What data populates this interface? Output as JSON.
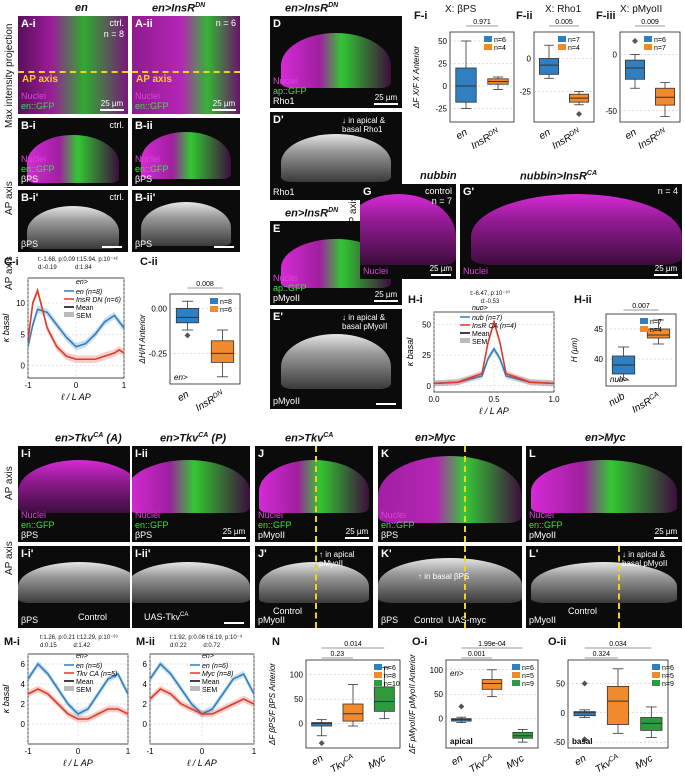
{
  "panels": {
    "A_i": {
      "label": "A-i",
      "title": "en",
      "ctrl": "ctrl.",
      "n": "n = 8",
      "ap": "AP axis",
      "scale": "25 µm",
      "ch1": "Nuclei",
      "ch2": "en::GFP"
    },
    "A_ii": {
      "label": "A-ii",
      "title": "en>InsR",
      "sup": "DN",
      "n": "n = 6",
      "ap": "AP axis",
      "scale": "25 µm",
      "ch1": "Nuclei",
      "ch2": "en::GFP"
    },
    "side_A": "Max intensity projection",
    "B_i": {
      "label": "B-i",
      "ctrl": "ctrl.",
      "ch1": "Nuclei",
      "ch2": "en::GFP",
      "ch3": "βPS"
    },
    "B_ii": {
      "label": "B-ii",
      "ch1": "Nuclei",
      "ch2": "en::GFP",
      "ch3": "βPS"
    },
    "B_i2": {
      "label": "B-i'",
      "ctrl": "ctrl.",
      "ch": "βPS"
    },
    "B_ii2": {
      "label": "B-ii'",
      "ch": "βPS"
    },
    "side_B": "AP axis",
    "side_B2": "AP axis",
    "C_i": {
      "label": "C-i",
      "stats1": "t:-1.68, p:0.09",
      "stats2": "t:15.94, p:10⁻⁴²",
      "stats3": "d:-0.19",
      "stats4": "d:1.84"
    },
    "C_ii": {
      "label": "C-ii",
      "pval": "0.008"
    },
    "D": {
      "label": "D",
      "title": "en>InsR",
      "sup": "DN",
      "ch1": "Nuclei",
      "ch2": "ap::GFP",
      "ch3": "Rho1",
      "scale": "25 µm"
    },
    "D2": {
      "label": "D'",
      "note": "↓ in apical & basal Rho1",
      "ch": "Rho1"
    },
    "E": {
      "label": "E",
      "title": "en>InsR",
      "sup": "DN",
      "ch1": "Nuclei",
      "ch2": "ap::GFP",
      "ch3": "pMyoII",
      "scale": "25 µm"
    },
    "E2": {
      "label": "E'",
      "note": "↓ in apical & basal pMyoII",
      "ch": "pMyoII"
    },
    "F_i": {
      "label": "F-i",
      "title": "X: βPS",
      "pval": "0.971"
    },
    "F_ii": {
      "label": "F-ii",
      "title": "X: Rho1",
      "pval": "0.005"
    },
    "F_iii": {
      "label": "F-iii",
      "title": "X: pMyoII",
      "pval": "0.009"
    },
    "G": {
      "label": "G",
      "title": "nubbin",
      "ctrl": "control",
      "n": "n = 7",
      "ch": "Nuclei",
      "scale": "25 µm"
    },
    "G2": {
      "label": "G'",
      "title": "nubbin>InsR",
      "sup": "CA",
      "n": "n = 4",
      "ch": "Nuclei",
      "scale": "25 µm"
    },
    "side_G": "AP axis",
    "H_i": {
      "label": "H-i",
      "stats1": "t:-6.47, p:10⁻¹⁰",
      "stats2": "d:-0.53"
    },
    "H_ii": {
      "label": "H-ii",
      "pval": "0.007"
    },
    "I_i": {
      "label": "I-i",
      "title": "en>Tkv",
      "sup": "CA",
      "suffix": " (A)",
      "ch1": "Nuclei",
      "ch2": "en::GFP",
      "ch3": "βPS"
    },
    "I_ii": {
      "label": "I-ii",
      "title": "en>Tkv",
      "sup": "CA",
      "suffix": " (P)",
      "ch1": "Nuclei",
      "ch2": "en::GFP",
      "ch3": "βPS",
      "scale": "25 µm"
    },
    "I_i2": {
      "label": "I-i'",
      "ch": "βPS",
      "ctrl": "Control"
    },
    "I_ii2": {
      "label": "I-ii'",
      "ctrl": "UAS-Tkv",
      "sup": "CA"
    },
    "side_I": "AP axis",
    "side_I2": "AP axis",
    "J": {
      "label": "J",
      "title": "en>Tkv",
      "sup": "CA",
      "ch1": "Nuclei",
      "ch2": "en::GFP",
      "ch3": "pMyoII",
      "scale": "25 µm"
    },
    "J2": {
      "label": "J'",
      "note": "↑ in apical pMyoII",
      "ctrl": "Control",
      "ch": "pMyoII"
    },
    "K": {
      "label": "K",
      "title": "en>Myc",
      "ch1": "Nuclei",
      "ch2": "en::GFP",
      "ch3": "βPS"
    },
    "K2": {
      "label": "K'",
      "note": "↑ in basal βPS",
      "ctrl": "Control",
      "ctrl2": "UAS-myc",
      "ch": "βPS"
    },
    "L": {
      "label": "L",
      "title": "en>Myc",
      "ch1": "Nuclei",
      "ch2": "en::GFP",
      "ch3": "pMyoII",
      "scale": "25 µm"
    },
    "L2": {
      "label": "L'",
      "note": "↓ in apical & basal pMyoII",
      "ctrl": "Control",
      "ch": "pMyoII"
    },
    "M_i": {
      "label": "M-i",
      "stats1": "t:1.26, p:0.21",
      "stats2": "t:12.29, p:10⁻²⁹",
      "stats3": "d:0.15",
      "stats4": "d:1.42"
    },
    "M_ii": {
      "label": "M-ii",
      "stats1": "t:1.92, p:0.06",
      "stats2": "t:6.19, p:10⁻⁹",
      "stats3": "d:0.22",
      "stats4": "d:0.72"
    },
    "N": {
      "label": "N",
      "p1": "0.014",
      "p2": "0.23"
    },
    "O_i": {
      "label": "O-i",
      "p1": "1.99e-04",
      "p2": "0.001",
      "tag": "apical",
      "inner": "en>"
    },
    "O_ii": {
      "label": "O-ii",
      "p1": "0.034",
      "p2": "0.324",
      "tag": "basal",
      "inner": "en>"
    }
  },
  "colors": {
    "blue": "#2f7fc1",
    "red": "#e03a2a",
    "orange": "#f08a2c",
    "green": "#2e9a3e",
    "yellow": "#f2d21a"
  },
  "chart_data": [
    {
      "id": "C-i",
      "type": "line",
      "xlabel": "ℓ / L_AP",
      "ylabel": "κ_basal",
      "xlim": [
        -1,
        1
      ],
      "ylim": [
        -2,
        14
      ],
      "xticks": [
        "-1",
        "0",
        "1"
      ],
      "yticks": [
        "0",
        "5",
        "10"
      ],
      "legend_title": "en>",
      "series": [
        {
          "name": "en (n=8)",
          "x": [
            -1,
            -0.9,
            -0.8,
            -0.6,
            -0.4,
            -0.2,
            0,
            0.2,
            0.4,
            0.6,
            0.8,
            0.9,
            1
          ],
          "y": [
            3,
            6.5,
            9,
            8.5,
            6.5,
            4.5,
            3,
            3.5,
            5,
            7,
            8,
            7,
            6
          ]
        },
        {
          "name": "InsR^DN (n=6)",
          "x": [
            -1,
            -0.9,
            -0.8,
            -0.6,
            -0.4,
            -0.2,
            0,
            0.2,
            0.4,
            0.6,
            0.8,
            0.9,
            1
          ],
          "y": [
            4,
            10,
            12,
            6,
            3,
            1.5,
            1,
            1,
            1,
            1.5,
            2,
            2.5,
            2
          ]
        }
      ],
      "legend_extra": [
        "Mean",
        "SEM"
      ]
    },
    {
      "id": "C-ii",
      "type": "box",
      "ylabel": "ΔH/H_Anterior",
      "categories": [
        "en",
        "InsR^DN"
      ],
      "yticks": [
        "0.00",
        "-0.25"
      ],
      "inner_label": "en>",
      "legend": [
        "n=8",
        "n=6"
      ],
      "boxes": [
        {
          "q1": -0.08,
          "median": -0.05,
          "q3": 0.0,
          "whislo": -0.12,
          "whishi": 0.04,
          "outliers": [
            -0.15
          ]
        },
        {
          "q1": -0.3,
          "median": -0.25,
          "q3": -0.18,
          "whislo": -0.38,
          "whishi": -0.12,
          "outliers": []
        }
      ],
      "pval": "0.008"
    },
    {
      "id": "F-i",
      "type": "box",
      "title": "X: βPS",
      "ylabel": "ΔF^X/F^X_Anterior",
      "categories": [
        "en",
        "InsR^DN"
      ],
      "yticks": [
        "50",
        "25",
        "0",
        "-25"
      ],
      "legend": [
        "n=6",
        "n=4"
      ],
      "boxes": [
        {
          "q1": -18,
          "median": 0,
          "q3": 20,
          "whislo": -25,
          "whishi": 50,
          "outliers": []
        },
        {
          "q1": 2,
          "median": 5,
          "q3": 8,
          "whislo": -4,
          "whishi": 10,
          "outliers": []
        }
      ],
      "pval": "0.971"
    },
    {
      "id": "F-ii",
      "type": "box",
      "title": "X: Rho1",
      "categories": [
        "en",
        "InsR^DN"
      ],
      "yticks": [
        "0",
        "-25"
      ],
      "legend": [
        "n=7",
        "n=4"
      ],
      "boxes": [
        {
          "q1": -12,
          "median": -5,
          "q3": 0,
          "whislo": -15,
          "whishi": 10,
          "outliers": []
        },
        {
          "q1": -33,
          "median": -30,
          "q3": -27,
          "whislo": -35,
          "whishi": -25,
          "outliers": [
            -42
          ]
        }
      ],
      "pval": "0.005"
    },
    {
      "id": "F-iii",
      "type": "box",
      "title": "X: pMyoII",
      "categories": [
        "en",
        "InsR^DN"
      ],
      "yticks": [
        "0",
        "-50"
      ],
      "legend": [
        "n=6",
        "n=7"
      ],
      "boxes": [
        {
          "q1": -22,
          "median": -12,
          "q3": -5,
          "whislo": -30,
          "whishi": 0,
          "outliers": [
            12
          ]
        },
        {
          "q1": -45,
          "median": -38,
          "q3": -30,
          "whislo": -55,
          "whishi": -25,
          "outliers": []
        }
      ],
      "pval": "0.009"
    },
    {
      "id": "H-i",
      "type": "line",
      "xlabel": "ℓ / L_AP",
      "ylabel": "κ_basal",
      "xlim": [
        0,
        1
      ],
      "ylim": [
        -5,
        60
      ],
      "xticks": [
        "0.0",
        "0.5",
        "1.0"
      ],
      "yticks": [
        "0",
        "25",
        "50"
      ],
      "legend_title": "nub>",
      "series": [
        {
          "name": "nub (n=7)",
          "x": [
            0,
            0.2,
            0.4,
            0.45,
            0.5,
            0.55,
            0.6,
            0.8,
            1
          ],
          "y": [
            2,
            3,
            8,
            22,
            30,
            22,
            8,
            3,
            2
          ]
        },
        {
          "name": "InsR^CA (n=4)",
          "x": [
            0,
            0.2,
            0.4,
            0.45,
            0.5,
            0.55,
            0.6,
            0.8,
            1
          ],
          "y": [
            2,
            3,
            10,
            35,
            52,
            35,
            10,
            3,
            2
          ]
        }
      ],
      "legend_extra": [
        "Mean",
        "SEM"
      ]
    },
    {
      "id": "H-ii",
      "type": "box",
      "ylabel": "H (µm)",
      "categories": [
        "nub",
        "InsR^CA"
      ],
      "yticks": [
        "40",
        "45"
      ],
      "inner_label": "nub>",
      "legend": [
        "n=7",
        "n=4"
      ],
      "boxes": [
        {
          "q1": 37.5,
          "median": 39,
          "q3": 40.5,
          "whislo": 36.5,
          "whishi": 42,
          "outliers": []
        },
        {
          "q1": 43.5,
          "median": 44,
          "q3": 45,
          "whislo": 42.5,
          "whishi": 46.5,
          "outliers": []
        }
      ],
      "pval": "0.007"
    },
    {
      "id": "M-i",
      "type": "line",
      "xlabel": "ℓ / L_AP",
      "ylabel": "κ_basal",
      "xlim": [
        -1,
        1
      ],
      "ylim": [
        -2,
        7
      ],
      "xticks": [
        "-1",
        "0",
        "1"
      ],
      "yticks": [
        "0",
        "2",
        "4",
        "6"
      ],
      "legend_title": "en>",
      "series": [
        {
          "name": "en (n=6)",
          "x": [
            -1,
            -0.8,
            -0.6,
            -0.4,
            -0.2,
            0,
            0.2,
            0.4,
            0.6,
            0.8,
            1
          ],
          "y": [
            4.5,
            6,
            5,
            3.5,
            2,
            1,
            1.5,
            3,
            4.5,
            5,
            3
          ]
        },
        {
          "name": "Tkv^CA (n=5)",
          "x": [
            -1,
            -0.8,
            -0.6,
            -0.4,
            -0.2,
            0,
            0.2,
            0.4,
            0.6,
            0.8,
            1
          ],
          "y": [
            3,
            3.5,
            3,
            2,
            1,
            0.5,
            0.5,
            1,
            1.5,
            1.5,
            1
          ]
        }
      ],
      "legend_extra": [
        "Mean",
        "SEM"
      ]
    },
    {
      "id": "M-ii",
      "type": "line",
      "xlabel": "ℓ / L_AP",
      "xlim": [
        -1,
        1
      ],
      "ylim": [
        -2,
        7
      ],
      "xticks": [
        "-1",
        "0",
        "1"
      ],
      "yticks": [
        "0",
        "2",
        "4",
        "6"
      ],
      "legend_title": "en>",
      "series": [
        {
          "name": "en (n=6)",
          "x": [
            -1,
            -0.8,
            -0.6,
            -0.4,
            -0.2,
            0,
            0.2,
            0.4,
            0.6,
            0.8,
            1
          ],
          "y": [
            4.5,
            6,
            5,
            3.5,
            2,
            1,
            1.5,
            3,
            4.5,
            5,
            3
          ]
        },
        {
          "name": "Myc (n=8)",
          "x": [
            -1,
            -0.8,
            -0.6,
            -0.4,
            -0.2,
            0,
            0.2,
            0.4,
            0.6,
            0.8,
            1
          ],
          "y": [
            2.5,
            3.5,
            3,
            2,
            1.5,
            1,
            1,
            1.5,
            2,
            2.5,
            2
          ]
        }
      ],
      "legend_extra": [
        "Mean",
        "SEM"
      ]
    },
    {
      "id": "N",
      "type": "box",
      "ylabel": "ΔF^βPS/F^βPS_Anterior",
      "categories": [
        "en",
        "Tkv^CA",
        "Myc"
      ],
      "yticks": [
        "100",
        "50",
        "0"
      ],
      "legend": [
        "n=6",
        "n=8",
        "n=10"
      ],
      "boxes": [
        {
          "q1": -5,
          "median": 0,
          "q3": 2,
          "whislo": -25,
          "whishi": 8,
          "outliers": [
            -40
          ]
        },
        {
          "q1": 5,
          "median": 20,
          "q3": 40,
          "whislo": -5,
          "whishi": 80,
          "outliers": []
        },
        {
          "q1": 25,
          "median": 45,
          "q3": 75,
          "whislo": 10,
          "whishi": 115,
          "outliers": []
        }
      ],
      "pvals": [
        "0.014",
        "0.23"
      ]
    },
    {
      "id": "O-i",
      "type": "box",
      "ylabel": "ΔF^pMyoII/F^pMyoII_Anterior",
      "categories": [
        "en",
        "Tkv^CA",
        "Myc"
      ],
      "yticks": [
        "100",
        "50",
        "0"
      ],
      "legend": [
        "n=6",
        "n=5",
        "n=9"
      ],
      "boxes": [
        {
          "q1": -5,
          "median": -2,
          "q3": 0,
          "whislo": -8,
          "whishi": 3,
          "outliers": [
            25
          ]
        },
        {
          "q1": 60,
          "median": 72,
          "q3": 80,
          "whislo": 45,
          "whishi": 100,
          "outliers": []
        },
        {
          "q1": -40,
          "median": -35,
          "q3": -28,
          "whislo": -48,
          "whishi": -22,
          "outliers": []
        }
      ],
      "pvals": [
        "1.99e-04",
        "0.001"
      ]
    },
    {
      "id": "O-ii",
      "type": "box",
      "categories": [
        "en",
        "Tkv^CA",
        "Myc"
      ],
      "yticks": [
        "50",
        "0",
        "-50"
      ],
      "legend": [
        "n=6",
        "n=5",
        "n=9"
      ],
      "boxes": [
        {
          "q1": -5,
          "median": 0,
          "q3": 2,
          "whislo": -8,
          "whishi": 5,
          "outliers": [
            50,
            -45
          ]
        },
        {
          "q1": -20,
          "median": 20,
          "q3": 45,
          "whislo": -35,
          "whishi": 75,
          "outliers": []
        },
        {
          "q1": -30,
          "median": -18,
          "q3": -8,
          "whislo": -42,
          "whishi": 10,
          "outliers": []
        }
      ],
      "pvals": [
        "0.034",
        "0.324"
      ]
    }
  ]
}
